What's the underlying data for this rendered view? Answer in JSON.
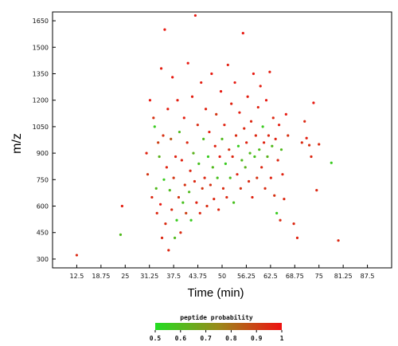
{
  "chart_data": {
    "type": "scatter",
    "xlabel": "Time (min)",
    "ylabel": "m/z",
    "xlim": [
      6.25,
      93.75
    ],
    "ylim": [
      250,
      1700
    ],
    "xticks": [
      "12.5",
      "18.75",
      "25",
      "31.25",
      "37.5",
      "43.75",
      "50",
      "56.25",
      "62.5",
      "68.75",
      "75",
      "81.25",
      "87.5"
    ],
    "yticks": [
      "300",
      "450",
      "600",
      "750",
      "900",
      "1050",
      "1200",
      "1350",
      "1500",
      "1650"
    ],
    "colorbar": {
      "title": "peptide probability",
      "ticks": [
        "0.5",
        "0.6",
        "0.7",
        "0.8",
        "0.9",
        "1"
      ],
      "range": [
        0.5,
        1
      ],
      "low_color": "#22dd22",
      "high_color": "#ee1111"
    },
    "series": [
      {
        "points": [
          [
            12.5,
            322,
            0.95
          ],
          [
            23.8,
            438,
            0.6
          ],
          [
            24.2,
            600,
            0.97
          ],
          [
            30.5,
            900,
            0.96
          ],
          [
            30.8,
            780,
            0.92
          ],
          [
            31.4,
            1200,
            0.98
          ],
          [
            31.9,
            650,
            0.95
          ],
          [
            32.3,
            1100,
            0.93
          ],
          [
            32.6,
            1050,
            0.55
          ],
          [
            33.0,
            700,
            0.6
          ],
          [
            33.2,
            560,
            0.95
          ],
          [
            33.5,
            960,
            0.9
          ],
          [
            33.8,
            880,
            0.62
          ],
          [
            34.1,
            610,
            0.98
          ],
          [
            34.3,
            1380,
            0.97
          ],
          [
            34.5,
            420,
            0.95
          ],
          [
            34.8,
            1000,
            0.93
          ],
          [
            35.0,
            750,
            0.55
          ],
          [
            35.2,
            1600,
            0.98
          ],
          [
            35.4,
            500,
            0.94
          ],
          [
            35.7,
            820,
            0.96
          ],
          [
            36.0,
            1150,
            0.97
          ],
          [
            36.2,
            350,
            0.95
          ],
          [
            36.5,
            690,
            0.6
          ],
          [
            36.8,
            980,
            0.85
          ],
          [
            37.0,
            580,
            0.94
          ],
          [
            37.2,
            1330,
            0.98
          ],
          [
            37.5,
            760,
            0.92
          ],
          [
            37.8,
            420,
            0.6
          ],
          [
            38.0,
            880,
            0.96
          ],
          [
            38.3,
            520,
            0.55
          ],
          [
            38.5,
            1200,
            0.97
          ],
          [
            38.8,
            650,
            0.92
          ],
          [
            39.0,
            1020,
            0.6
          ],
          [
            39.3,
            450,
            0.94
          ],
          [
            39.6,
            860,
            0.96
          ],
          [
            39.9,
            620,
            0.58
          ],
          [
            40.2,
            1100,
            0.97
          ],
          [
            40.4,
            720,
            0.93
          ],
          [
            40.7,
            560,
            0.9
          ],
          [
            41.0,
            960,
            0.95
          ],
          [
            41.2,
            1410,
            0.98
          ],
          [
            41.5,
            680,
            0.6
          ],
          [
            41.8,
            800,
            0.95
          ],
          [
            42.0,
            520,
            0.55
          ],
          [
            42.3,
            1220,
            0.97
          ],
          [
            42.6,
            900,
            0.62
          ],
          [
            42.9,
            740,
            0.95
          ],
          [
            43.1,
            1680,
            0.98
          ],
          [
            43.4,
            620,
            0.96
          ],
          [
            43.7,
            1060,
            0.94
          ],
          [
            44.0,
            840,
            0.58
          ],
          [
            44.3,
            560,
            0.95
          ],
          [
            44.6,
            1300,
            0.97
          ],
          [
            44.9,
            700,
            0.92
          ],
          [
            45.2,
            980,
            0.6
          ],
          [
            45.5,
            760,
            0.95
          ],
          [
            45.8,
            1150,
            0.96
          ],
          [
            46.1,
            600,
            0.94
          ],
          [
            46.4,
            880,
            0.55
          ],
          [
            46.7,
            1020,
            0.97
          ],
          [
            47.0,
            720,
            0.93
          ],
          [
            47.3,
            1350,
            0.98
          ],
          [
            47.6,
            820,
            0.6
          ],
          [
            47.9,
            640,
            0.95
          ],
          [
            48.2,
            940,
            0.96
          ],
          [
            48.5,
            1120,
            0.92
          ],
          [
            48.8,
            760,
            0.58
          ],
          [
            49.1,
            580,
            0.95
          ],
          [
            49.4,
            880,
            0.97
          ],
          [
            49.7,
            1250,
            0.98
          ],
          [
            50.0,
            980,
            0.6
          ],
          [
            50.3,
            700,
            0.94
          ],
          [
            50.6,
            1060,
            0.96
          ],
          [
            50.9,
            840,
            0.55
          ],
          [
            51.2,
            650,
            0.95
          ],
          [
            51.5,
            1400,
            0.97
          ],
          [
            51.8,
            920,
            0.93
          ],
          [
            52.1,
            760,
            0.6
          ],
          [
            52.4,
            1180,
            0.96
          ],
          [
            52.7,
            880,
            0.95
          ],
          [
            53.0,
            620,
            0.58
          ],
          [
            53.3,
            1300,
            0.98
          ],
          [
            53.6,
            1000,
            0.94
          ],
          [
            53.9,
            780,
            0.96
          ],
          [
            54.2,
            940,
            0.55
          ],
          [
            54.5,
            1130,
            0.97
          ],
          [
            54.8,
            700,
            0.93
          ],
          [
            55.1,
            860,
            0.6
          ],
          [
            55.4,
            1580,
            0.98
          ],
          [
            55.7,
            1040,
            0.95
          ],
          [
            56.0,
            820,
            0.62
          ],
          [
            56.3,
            960,
            0.96
          ],
          [
            56.6,
            1220,
            0.97
          ],
          [
            56.9,
            740,
            0.94
          ],
          [
            57.2,
            900,
            0.6
          ],
          [
            57.5,
            1080,
            0.95
          ],
          [
            57.8,
            650,
            0.96
          ],
          [
            58.1,
            1350,
            0.98
          ],
          [
            58.4,
            880,
            0.58
          ],
          [
            58.7,
            1000,
            0.95
          ],
          [
            59.0,
            760,
            0.93
          ],
          [
            59.3,
            1160,
            0.96
          ],
          [
            59.6,
            920,
            0.6
          ],
          [
            59.9,
            1280,
            0.97
          ],
          [
            60.2,
            820,
            0.95
          ],
          [
            60.5,
            1050,
            0.55
          ],
          [
            60.8,
            960,
            0.96
          ],
          [
            61.1,
            700,
            0.94
          ],
          [
            61.4,
            1200,
            0.98
          ],
          [
            61.7,
            880,
            0.62
          ],
          [
            62.0,
            1000,
            0.95
          ],
          [
            62.3,
            1360,
            0.97
          ],
          [
            62.6,
            760,
            0.96
          ],
          [
            62.9,
            940,
            0.6
          ],
          [
            63.2,
            1100,
            0.95
          ],
          [
            63.5,
            660,
            0.93
          ],
          [
            63.8,
            980,
            0.96
          ],
          [
            64.1,
            560,
            0.55
          ],
          [
            64.4,
            860,
            0.95
          ],
          [
            64.7,
            1060,
            0.97
          ],
          [
            65.0,
            520,
            0.94
          ],
          [
            65.3,
            920,
            0.6
          ],
          [
            65.6,
            780,
            0.96
          ],
          [
            66.0,
            640,
            0.95
          ],
          [
            66.5,
            1120,
            0.98
          ],
          [
            67.0,
            1000,
            0.93
          ],
          [
            68.5,
            500,
            0.95
          ],
          [
            69.4,
            420,
            0.96
          ],
          [
            70.6,
            960,
            0.94
          ],
          [
            71.3,
            1080,
            0.95
          ],
          [
            71.8,
            985,
            0.97
          ],
          [
            72.5,
            945,
            0.93
          ],
          [
            73.0,
            880,
            0.95
          ],
          [
            73.6,
            1185,
            0.98
          ],
          [
            74.4,
            690,
            0.95
          ],
          [
            75.0,
            950,
            0.94
          ],
          [
            78.2,
            845,
            0.55
          ],
          [
            80.0,
            405,
            0.95
          ]
        ]
      }
    ]
  }
}
